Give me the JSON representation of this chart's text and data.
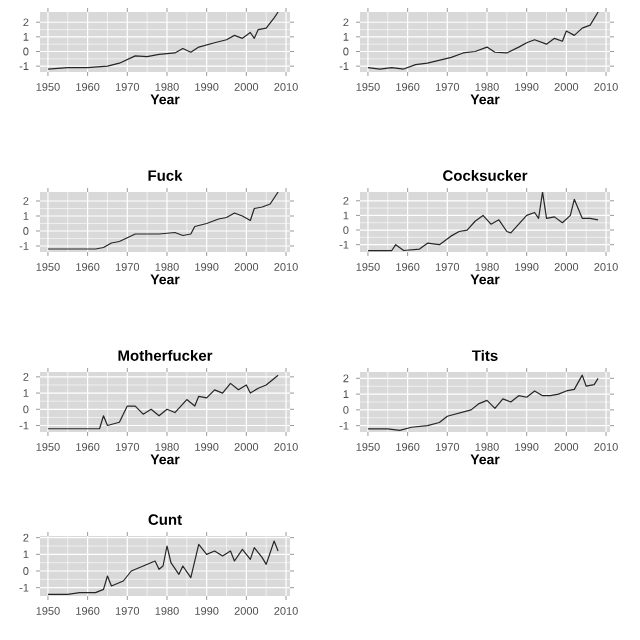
{
  "chart_data": [
    {
      "type": "line",
      "xlabel": "Year",
      "x": [
        1950,
        1955,
        1960,
        1965,
        1968,
        1972,
        1975,
        1978,
        1982,
        1984,
        1986,
        1988,
        1992,
        1995,
        1997,
        1999,
        2001,
        2002,
        2003,
        2005,
        2007,
        2008
      ],
      "values": [
        -1.2,
        -1.1,
        -1.1,
        -1.0,
        -0.8,
        -0.3,
        -0.35,
        -0.2,
        -0.1,
        0.2,
        -0.05,
        0.3,
        0.6,
        0.8,
        1.1,
        0.9,
        1.3,
        0.9,
        1.5,
        1.6,
        2.3,
        2.7
      ],
      "color": "#262626",
      "xlim": [
        1948,
        2011
      ],
      "ylim": [
        -1.4,
        2.7
      ],
      "xticks": [
        1950,
        1960,
        1970,
        1980,
        1990,
        2000,
        2010
      ],
      "yticks": [
        -1,
        0,
        1,
        2
      ],
      "grid": true
    },
    {
      "type": "line",
      "xlabel": "Year",
      "x": [
        1950,
        1953,
        1956,
        1959,
        1962,
        1965,
        1968,
        1971,
        1974,
        1977,
        1980,
        1982,
        1985,
        1988,
        1990,
        1992,
        1995,
        1997,
        1999,
        2000,
        2002,
        2004,
        2006,
        2008
      ],
      "values": [
        -1.1,
        -1.2,
        -1.1,
        -1.2,
        -0.9,
        -0.8,
        -0.6,
        -0.4,
        -0.1,
        0.0,
        0.3,
        -0.05,
        -0.1,
        0.3,
        0.6,
        0.8,
        0.5,
        0.9,
        0.7,
        1.4,
        1.1,
        1.6,
        1.8,
        2.7
      ],
      "color": "#262626",
      "xlim": [
        1948,
        2011
      ],
      "ylim": [
        -1.4,
        2.7
      ],
      "xticks": [
        1950,
        1960,
        1970,
        1980,
        1990,
        2000,
        2010
      ],
      "yticks": [
        -1,
        0,
        1,
        2
      ],
      "grid": true
    },
    {
      "type": "line",
      "title": "Fuck",
      "xlabel": "Year",
      "x": [
        1950,
        1962,
        1964,
        1966,
        1968,
        1972,
        1975,
        1978,
        1982,
        1984,
        1986,
        1987,
        1990,
        1993,
        1995,
        1997,
        1999,
        2001,
        2002,
        2004,
        2006,
        2008
      ],
      "values": [
        -1.2,
        -1.2,
        -1.1,
        -0.8,
        -0.7,
        -0.2,
        -0.2,
        -0.2,
        -0.1,
        -0.3,
        -0.2,
        0.3,
        0.5,
        0.8,
        0.9,
        1.2,
        1.0,
        0.7,
        1.5,
        1.6,
        1.8,
        2.6
      ],
      "color": "#262626",
      "xlim": [
        1948,
        2011
      ],
      "ylim": [
        -1.4,
        2.6
      ],
      "xticks": [
        1950,
        1960,
        1970,
        1980,
        1990,
        2000,
        2010
      ],
      "yticks": [
        -1,
        0,
        1,
        2
      ],
      "grid": true
    },
    {
      "type": "line",
      "title": "Cocksucker",
      "xlabel": "Year",
      "x": [
        1950,
        1956,
        1957,
        1959,
        1963,
        1965,
        1968,
        1971,
        1973,
        1975,
        1977,
        1979,
        1981,
        1983,
        1985,
        1986,
        1988,
        1990,
        1992,
        1993,
        1994,
        1995,
        1997,
        1999,
        2001,
        2002,
        2004,
        2006,
        2008
      ],
      "values": [
        -1.4,
        -1.4,
        -1.0,
        -1.4,
        -1.3,
        -0.9,
        -1.0,
        -0.4,
        -0.1,
        0.0,
        0.6,
        1.0,
        0.4,
        0.7,
        -0.1,
        -0.2,
        0.4,
        1.0,
        1.2,
        0.8,
        2.6,
        0.8,
        0.9,
        0.5,
        1.0,
        2.1,
        0.8,
        0.8,
        0.7
      ],
      "color": "#262626",
      "xlim": [
        1948,
        2011
      ],
      "ylim": [
        -1.5,
        2.6
      ],
      "xticks": [
        1950,
        1960,
        1970,
        1980,
        1990,
        2000,
        2010
      ],
      "yticks": [
        -1,
        0,
        1,
        2
      ],
      "grid": true
    },
    {
      "type": "line",
      "title": "Motherfucker",
      "xlabel": "Year",
      "x": [
        1950,
        1963,
        1964,
        1965,
        1968,
        1970,
        1972,
        1974,
        1976,
        1978,
        1980,
        1982,
        1985,
        1987,
        1988,
        1990,
        1992,
        1994,
        1996,
        1998,
        2000,
        2001,
        2003,
        2005,
        2007,
        2008
      ],
      "values": [
        -1.2,
        -1.2,
        -0.4,
        -1.0,
        -0.8,
        0.2,
        0.2,
        -0.3,
        0.0,
        -0.4,
        0.0,
        -0.2,
        0.6,
        0.2,
        0.8,
        0.7,
        1.2,
        1.0,
        1.6,
        1.2,
        1.5,
        1.0,
        1.3,
        1.5,
        1.9,
        2.1
      ],
      "color": "#262626",
      "xlim": [
        1948,
        2011
      ],
      "ylim": [
        -1.4,
        2.3
      ],
      "xticks": [
        1950,
        1960,
        1970,
        1980,
        1990,
        2000,
        2010
      ],
      "yticks": [
        -1,
        0,
        1,
        2
      ],
      "grid": true
    },
    {
      "type": "line",
      "title": "Tits",
      "xlabel": "Year",
      "x": [
        1950,
        1955,
        1958,
        1961,
        1965,
        1968,
        1970,
        1973,
        1976,
        1978,
        1980,
        1982,
        1984,
        1986,
        1988,
        1990,
        1992,
        1994,
        1996,
        1998,
        2000,
        2002,
        2004,
        2005,
        2007,
        2008
      ],
      "values": [
        -1.2,
        -1.2,
        -1.3,
        -1.1,
        -1.0,
        -0.8,
        -0.4,
        -0.2,
        0.0,
        0.4,
        0.6,
        0.1,
        0.7,
        0.5,
        0.9,
        0.8,
        1.2,
        0.9,
        0.9,
        1.0,
        1.2,
        1.3,
        2.2,
        1.5,
        1.6,
        2.0
      ],
      "color": "#262626",
      "xlim": [
        1948,
        2011
      ],
      "ylim": [
        -1.4,
        2.4
      ],
      "xticks": [
        1950,
        1960,
        1970,
        1980,
        1990,
        2000,
        2010
      ],
      "yticks": [
        -1,
        0,
        1,
        2
      ],
      "grid": true
    },
    {
      "type": "line",
      "title": "Cunt",
      "x": [
        1950,
        1955,
        1958,
        1962,
        1964,
        1965,
        1966,
        1969,
        1971,
        1974,
        1977,
        1978,
        1979,
        1980,
        1981,
        1983,
        1984,
        1986,
        1988,
        1990,
        1992,
        1994,
        1996,
        1997,
        1999,
        2001,
        2002,
        2004,
        2005,
        2007,
        2008
      ],
      "values": [
        -1.4,
        -1.4,
        -1.3,
        -1.3,
        -1.1,
        -0.3,
        -0.9,
        -0.6,
        0.0,
        0.3,
        0.6,
        0.1,
        0.3,
        1.5,
        0.5,
        -0.2,
        0.3,
        -0.4,
        1.6,
        1.0,
        1.2,
        0.9,
        1.2,
        0.6,
        1.3,
        0.7,
        1.4,
        0.8,
        0.4,
        1.8,
        1.2
      ],
      "color": "#262626",
      "xlim": [
        1948,
        2011
      ],
      "ylim": [
        -1.5,
        2.1
      ],
      "xticks": [
        1950,
        1960,
        1970,
        1980,
        1990,
        2000,
        2010
      ],
      "yticks": [
        -1,
        0,
        1,
        2
      ],
      "grid": true
    }
  ]
}
